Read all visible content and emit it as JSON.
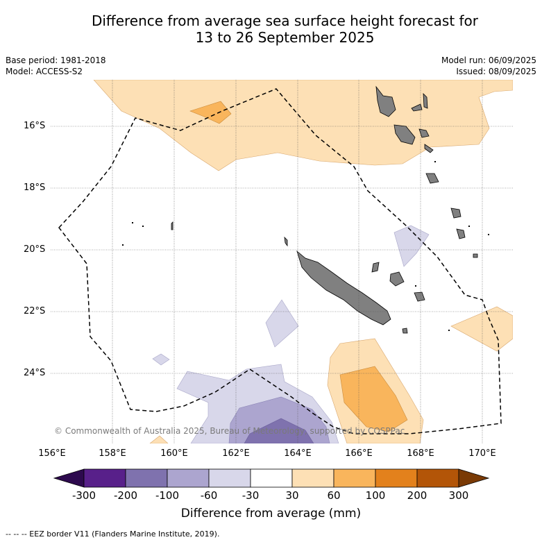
{
  "title_line1": "Difference from average sea surface height forecast for",
  "title_line2": "13 to 26 September 2025",
  "base_period": "Base period: 1981-2018",
  "model": "Model: ACCESS-S2",
  "model_run": "Model run: 06/09/2025",
  "issued": "Issued: 08/09/2025",
  "copyright": "© Commonwealth of Australia 2025, Bureau of Meteorology, supported by COSPPac",
  "latitude_labels": [
    "16°S",
    "18°S",
    "20°S",
    "22°S",
    "24°S"
  ],
  "longitude_labels": [
    "156°E",
    "158°E",
    "160°E",
    "162°E",
    "164°E",
    "166°E",
    "168°E",
    "170°E"
  ],
  "colorbar": {
    "ticks": [
      "-300",
      "-200",
      "-100",
      "-60",
      "-30",
      "30",
      "60",
      "100",
      "200",
      "300"
    ],
    "label": "Difference from average (mm)",
    "colors": {
      "below_-300": "#2d0a4e",
      "-300_-200": "#58208a",
      "-200_-100": "#7f72ae",
      "-100_-60": "#aca5cf",
      "-60_-30": "#d8d7ea",
      "-30_30": "#ffffff",
      "30_60": "#fde0b5",
      "60_100": "#f9b55c",
      "100_200": "#e3811c",
      "200_300": "#b35508",
      "above_300": "#7a3a05"
    }
  },
  "land_color": "#808080",
  "eez_legend": "--  --  -- EEZ border V11 (Flanders Marine Institute, 2019)."
}
